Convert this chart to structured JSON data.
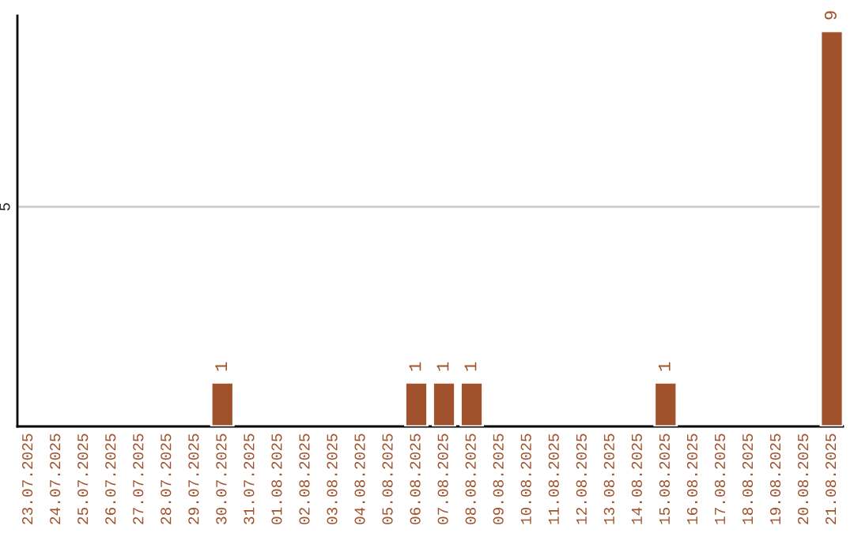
{
  "chart_data": {
    "type": "bar",
    "categories": [
      "23.07.2025",
      "24.07.2025",
      "25.07.2025",
      "26.07.2025",
      "27.07.2025",
      "28.07.2025",
      "29.07.2025",
      "30.07.2025",
      "31.07.2025",
      "01.08.2025",
      "02.08.2025",
      "03.08.2025",
      "04.08.2025",
      "05.08.2025",
      "06.08.2025",
      "07.08.2025",
      "08.08.2025",
      "09.08.2025",
      "10.08.2025",
      "11.08.2025",
      "12.08.2025",
      "13.08.2025",
      "14.08.2025",
      "15.08.2025",
      "16.08.2025",
      "17.08.2025",
      "18.08.2025",
      "19.08.2025",
      "20.08.2025",
      "21.08.2025"
    ],
    "values": [
      null,
      null,
      null,
      null,
      null,
      null,
      null,
      1,
      null,
      null,
      null,
      null,
      null,
      null,
      1,
      1,
      1,
      null,
      null,
      null,
      null,
      null,
      null,
      1,
      null,
      null,
      null,
      null,
      null,
      9
    ],
    "color": "#a0522d",
    "ylim": [
      0,
      9.35
    ],
    "yticks": [
      5
    ],
    "grid": "y",
    "data_labels": true
  }
}
